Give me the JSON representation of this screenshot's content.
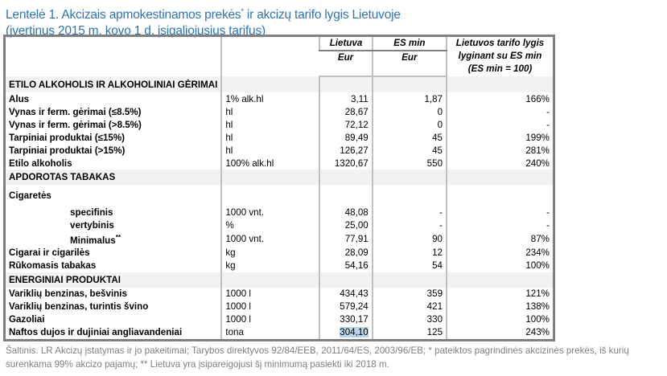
{
  "title": {
    "line1": "Lentelė 1. Akcizais apmokestinamos prekės",
    "sup": "*",
    "line1b": " ir akcizų tarifo lygis Lietuvoje",
    "line2": "(įvertinus 2015 m. kovo 1 d. įsigaliojusius tarifus)"
  },
  "header": {
    "lt": "Lietuva",
    "es": "ES min",
    "eur1": "Eur",
    "eur2": "Eur",
    "ratio1": "Lietuvos tarifo lygis",
    "ratio2": "lyginant su ES min",
    "ratio3": "(ES min = 100)"
  },
  "sections": [
    {
      "title": "ETILO ALKOHOLIS IR ALKOHOLINIAI GĖRIMAI",
      "rows": [
        {
          "label": "Alus",
          "unit": "1% alk.hl",
          "lt": "3,11",
          "es": "1,87",
          "ratio": "166%"
        },
        {
          "label": "Vynas ir ferm. gėrimai (≤8.5%)",
          "unit": "hl",
          "lt": "28,67",
          "es": "0",
          "ratio": "-"
        },
        {
          "label": "Vynas ir ferm. gėrimai (>8.5%)",
          "unit": "hl",
          "lt": "72,12",
          "es": "0",
          "ratio": "-"
        },
        {
          "label": "Tarpiniai produktai (≤15%)",
          "unit": "hl",
          "lt": "89,49",
          "es": "45",
          "ratio": "199%"
        },
        {
          "label": "Tarpiniai produktai (>15%)",
          "unit": "hl",
          "lt": "126,27",
          "es": "45",
          "ratio": "281%"
        },
        {
          "label": "Etilo alkoholis",
          "unit": "100% alk.hl",
          "lt": "1320,67",
          "es": "550",
          "ratio": "240%"
        }
      ]
    },
    {
      "title": "APDOROTAS TABAKAS",
      "group": "Cigaretės",
      "subrows": [
        {
          "label": "specifinis",
          "unit": "1000 vnt.",
          "lt": "48,08",
          "es": "-",
          "ratio": "-"
        },
        {
          "label": "vertybinis",
          "unit": "%",
          "lt": "25,00",
          "es": "-",
          "ratio": "-"
        },
        {
          "label": "Minimalus",
          "sup": "**",
          "unit": "1000 vnt.",
          "lt": "77,91",
          "es": "90",
          "ratio": "87%"
        }
      ],
      "rows": [
        {
          "label": "Cigarai ir cigarilės",
          "unit": "kg",
          "lt": "28,09",
          "es": "12",
          "ratio": "234%"
        },
        {
          "label": "Rūkomasis tabakas",
          "unit": "kg",
          "lt": "54,16",
          "es": "54",
          "ratio": "100%"
        }
      ]
    },
    {
      "title": "ENERGINIAI PRODUKTAI",
      "rows": [
        {
          "label": "Variklių benzinas, bešvinis",
          "unit": "1000 l",
          "lt": "434,43",
          "es": "359",
          "ratio": "121%"
        },
        {
          "label": "Variklių benzinas, turintis švino",
          "unit": "1000 l",
          "lt": "579,24",
          "es": "421",
          "ratio": "138%"
        },
        {
          "label": "Gazoliai",
          "unit": "1000 l",
          "lt": "330,17",
          "es": "330",
          "ratio": "100%"
        },
        {
          "label": "Naftos dujos ir dujiniai angliavandeniai",
          "unit": "tona",
          "lt": "304,10",
          "es": "125",
          "ratio": "243%"
        }
      ]
    }
  ],
  "footer": "Šaltinis. LR Akcizų įstatymas ir jo pakeitimai; Tarybos direktyvos 92/84/EEB, 2011/64/ES, 2003/96/EB; * pateiktos pagrindinės akcizinės prekės, iš kurių surenkama 99% akcizo pajamų; ** Lietuva yra įsipareigojusi šį minimumą pasiekti iki 2018 m."
}
